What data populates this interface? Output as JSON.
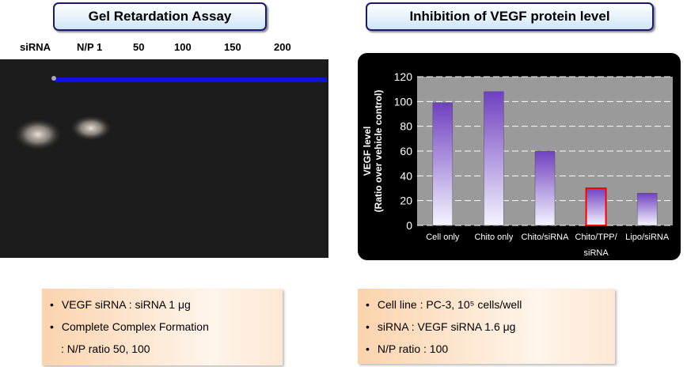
{
  "gel": {
    "title": "Gel Retardation Assay",
    "lanes": [
      "siRNA",
      "N/P 1",
      "50",
      "100",
      "150",
      "200"
    ]
  },
  "chart_data": {
    "type": "bar",
    "title": "Inhibition of VEGF protein level",
    "ylabel": [
      "VEGF level",
      "(Ratio over vehicle control)"
    ],
    "categories": [
      "Cell only",
      "Chito only",
      "Chito/siRNA",
      "Chito/TPP/siRNA",
      "Lipo/siRNA"
    ],
    "values": [
      99,
      108,
      60,
      30,
      26
    ],
    "color": "#7040c0",
    "highlight": {
      "index": 3,
      "color": "#ff0000"
    },
    "ylim": [
      0,
      120
    ],
    "yticks": [
      0,
      20,
      40,
      60,
      80,
      100,
      120
    ],
    "grid": true
  },
  "notes_left": [
    "VEGF siRNA : siRNA 1 μg",
    "Complete Complex Formation",
    ": N/P ratio  50, 100"
  ],
  "notes_right": [
    "Cell line : PC-3, 10⁵ cells/well",
    "siRNA : VEGF siRNA 1.6 μg",
    "N/P ratio : 100"
  ]
}
